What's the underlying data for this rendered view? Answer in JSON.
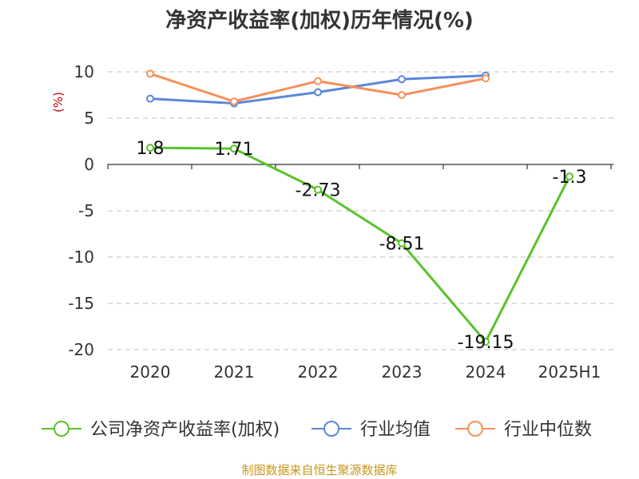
{
  "chart_data": {
    "type": "line",
    "title": "净资产收益率(加权)历年情况(%)",
    "ylabel": "(%)",
    "categories": [
      "2020",
      "2021",
      "2022",
      "2023",
      "2024",
      "2025H1"
    ],
    "ylim": [
      -20,
      10
    ],
    "yticks": [
      10,
      5,
      0,
      -5,
      -10,
      -15,
      -20
    ],
    "grid": true,
    "legend_position": "bottom",
    "series": [
      {
        "name": "公司净资产收益率(加权)",
        "color": "#5ac22c",
        "values": [
          1.8,
          1.71,
          -2.73,
          -8.51,
          -19.15,
          -1.3
        ],
        "labels": [
          "1.8",
          "1.71",
          "-2.73",
          "-8.51",
          "-19.15",
          "-1.3"
        ]
      },
      {
        "name": "行业均值",
        "color": "#5b87d9",
        "values": [
          7.1,
          6.6,
          7.8,
          9.2,
          9.6,
          null
        ]
      },
      {
        "name": "行业中位数",
        "color": "#f5905a",
        "values": [
          9.8,
          6.8,
          9.0,
          7.5,
          9.3,
          null
        ]
      }
    ]
  },
  "source": "制图数据来自恒生聚源数据库",
  "colors": {
    "ylabel": "#cc0000",
    "source": "#c8961e",
    "grid": "#cccccc",
    "axis": "#333333"
  }
}
